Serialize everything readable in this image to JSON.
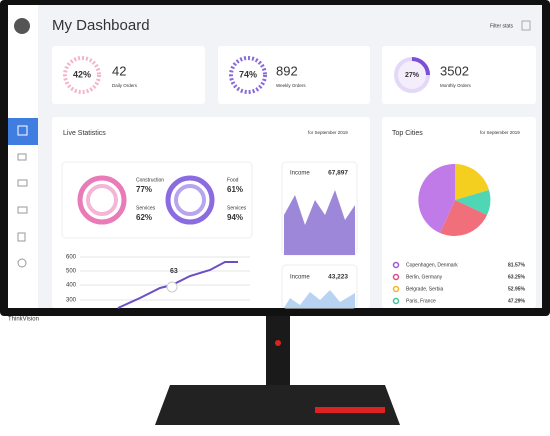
{
  "header": {
    "title": "My Dashboard",
    "filter": "Filter stats"
  },
  "stats": [
    {
      "percent": "42%",
      "value": "42",
      "label": "Daily Orders"
    },
    {
      "percent": "74%",
      "value": "892",
      "label": "Weekly Orders"
    },
    {
      "percent": "27%",
      "value": "3502",
      "label": "Monthly Orders"
    }
  ],
  "live": {
    "title": "Live Statistics",
    "period": "for September 2019",
    "rings": [
      {
        "label": "Construction",
        "value": "77%"
      },
      {
        "label": "Services",
        "value": "62%"
      },
      {
        "label": "Food",
        "value": "61%"
      },
      {
        "label": "Services",
        "value": "94%"
      }
    ],
    "income": [
      {
        "label": "Income",
        "value": "67,897"
      },
      {
        "label": "Income",
        "value": "43,223"
      }
    ],
    "line": {
      "ticks": [
        "600",
        "500",
        "400",
        "300"
      ],
      "point_label": "63"
    }
  },
  "cities": {
    "title": "Top Cities",
    "period": "for September 2019",
    "rows": [
      {
        "name": "Copenhagen, Denmark",
        "value": "81.57%"
      },
      {
        "name": "Berlin, Germany",
        "value": "63.25%"
      },
      {
        "name": "Belgrade, Serbia",
        "value": "52.95%"
      },
      {
        "name": "Paris, France",
        "value": "47.29%"
      }
    ]
  },
  "brand": "ThinkVision"
}
